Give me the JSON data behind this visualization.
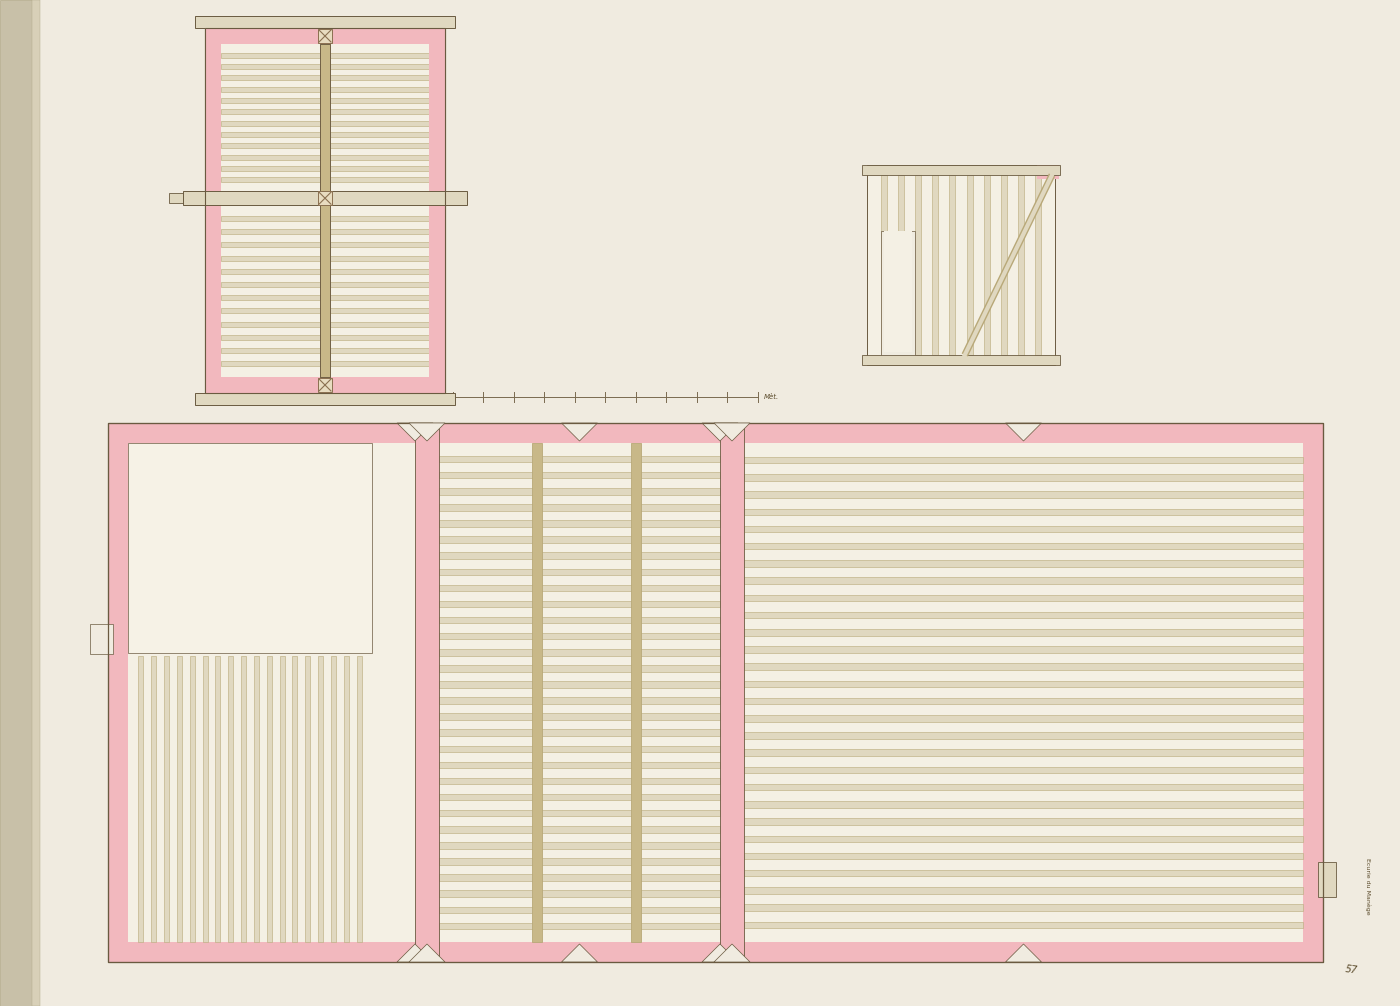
{
  "page_bg": "#f0ebe0",
  "pink": "#f2b8be",
  "pink_light": "#f5c8cc",
  "beam_color": "#e0d8c0",
  "beam_edge": "#b8a878",
  "beam_dark": "#c8b888",
  "wood_fill": "#f7f3e8",
  "inner_bg": "#f4f0e4",
  "timber_dark": "#8a7050",
  "line_color": "#7a6a50",
  "text_color": "#5a4a2a",
  "edge_dark": "#6a5a40",
  "paper_edge": "#c8b898"
}
